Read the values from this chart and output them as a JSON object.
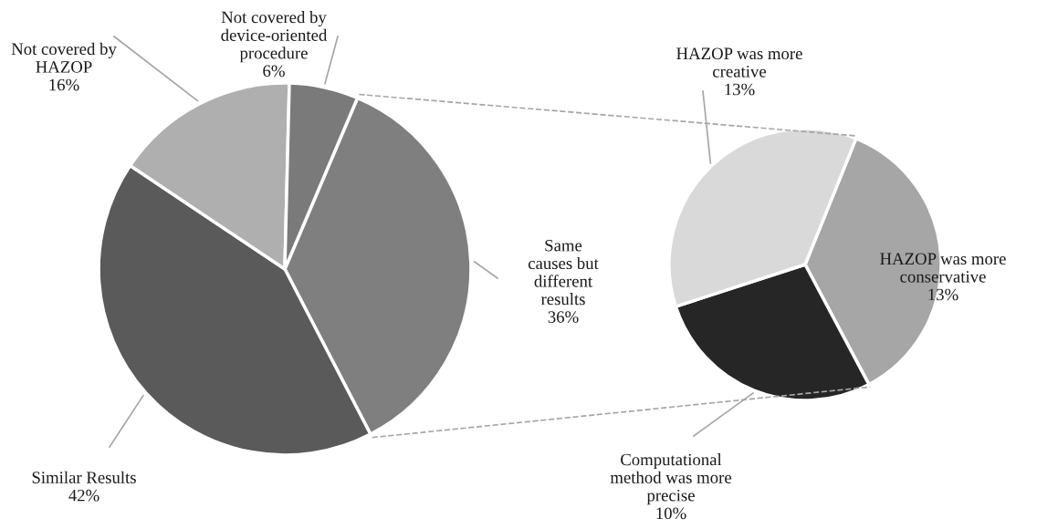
{
  "chart_data": [
    {
      "type": "pie",
      "categories": [
        "Same causes but different results",
        "Similar Results",
        "Not covered by HAZOP",
        "Not covered by device-oriented procedure"
      ],
      "values": [
        36,
        42,
        16,
        6
      ],
      "colors": [
        "#7f7f7f",
        "#5a5a5a",
        "#afafaf",
        "#7a7a7a"
      ],
      "value_labels": [
        "36%",
        "42%",
        "16%",
        "6%"
      ]
    },
    {
      "type": "pie",
      "categories": [
        "HAZOP was more conservative",
        "Computational method was more precise",
        "HAZOP was more creative"
      ],
      "values": [
        13,
        10,
        13
      ],
      "colors": [
        "#a6a6a6",
        "#262626",
        "#d9d9d9"
      ],
      "value_labels": [
        "13%",
        "10%",
        "13%"
      ]
    }
  ]
}
